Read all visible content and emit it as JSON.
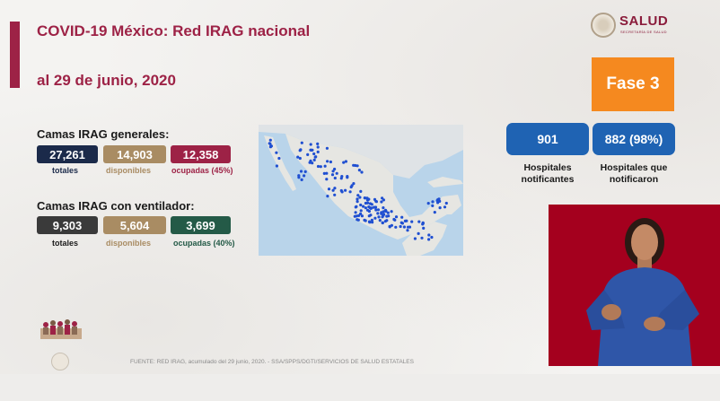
{
  "header": {
    "title": "COVID-19 México: Red IRAG nacional",
    "date": "al 29 de junio, 2020"
  },
  "logo": {
    "name": "SALUD",
    "subtitle": "SECRETARÍA DE SALUD"
  },
  "general_beds": {
    "label": "Camas IRAG generales:",
    "total": "27,261",
    "total_label": "totales",
    "available": "14,903",
    "available_label": "disponibles",
    "occupied": "12,358",
    "occupied_label": "ocupadas (45%)"
  },
  "ventilator_beds": {
    "label": "Camas IRAG con ventilador:",
    "total": "9,303",
    "total_label": "totales",
    "available": "5,604",
    "available_label": "disponibles",
    "occupied": "3,699",
    "occupied_label": "ocupadas (40%)"
  },
  "phase": {
    "label": "Fase 3"
  },
  "hospitals": {
    "reporting": "901",
    "reporting_label_1": "Hospitales",
    "reporting_label_2": "notificantes",
    "reported": "882 (98%)",
    "reported_label_1": "Hospitales que",
    "reported_label_2": "notificaron"
  },
  "footer": {
    "source": "FUENTE: RED IRAG, acumulado del 29 junio, 2020. -   SSA/SPPS/DGTI/SERVICIOS DE SALUD ESTATALES"
  },
  "colors": {
    "brand": "#9d2246",
    "total_box": "#1b2a4a",
    "available_box": "#a98c63",
    "occupied_general": "#9d2246",
    "total_vent_box": "#3a3a3a",
    "occupied_vent": "#245a47",
    "phase": "#f5891f",
    "hospital_box": "#1f63b3"
  }
}
